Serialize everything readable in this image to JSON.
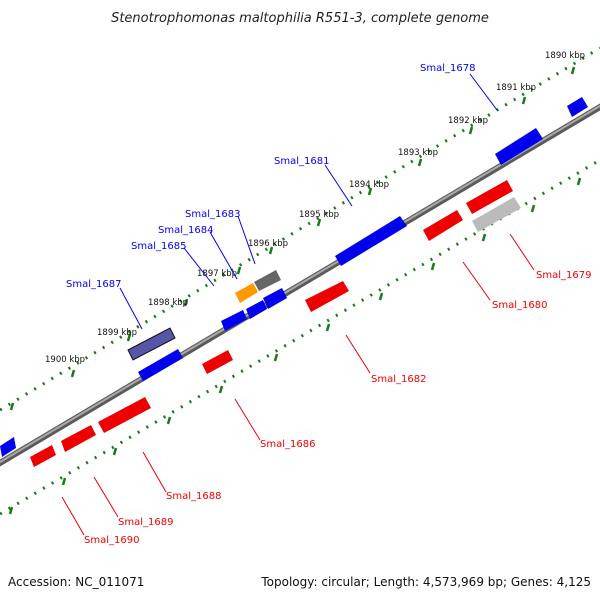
{
  "title": "Stenotrophomonas maltophilia R551-3, complete genome",
  "footer": {
    "accession": "Accession: NC_011071",
    "info": "Topology: circular; Length: 4,573,969 bp; Genes: 4,125"
  },
  "colors": {
    "forward": "#0000ee",
    "reverse": "#ee0000",
    "backbone": "#888888",
    "tick": "#1a7a1a",
    "rrna": "#ff9900",
    "pseudo": "#666666"
  },
  "scale_labels": [
    "1890 kbp",
    "1891 kbp",
    "1892 kbp",
    "1893 kbp",
    "1894 kbp",
    "1895 kbp",
    "1896 kbp",
    "1897 kbp",
    "1898 kbp",
    "1899 kbp",
    "1900 kbp"
  ],
  "forward_labels": [
    "Smal_1678",
    "Smal_1681",
    "Smal_1683",
    "Smal_1684",
    "Smal_1685",
    "Smal_1687"
  ],
  "reverse_labels": [
    "Smal_1679",
    "Smal_1680",
    "Smal_1682",
    "Smal_1686",
    "Smal_1688",
    "Smal_1689",
    "Smal_1690"
  ]
}
